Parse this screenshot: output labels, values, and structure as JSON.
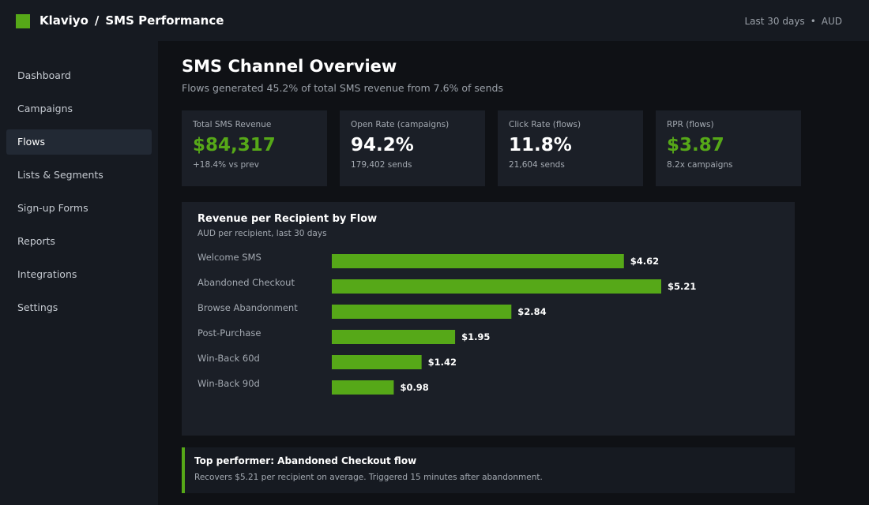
{
  "app": {
    "brand": "Klaviyo",
    "separator": "/",
    "section": "SMS Performance"
  },
  "top_meta": {
    "range": "Last 30 days",
    "dot": "•",
    "currency": "AUD"
  },
  "colors": {
    "accent": "#56a818",
    "bar": "#56a818"
  },
  "sidebar": {
    "items": [
      {
        "label": "Dashboard"
      },
      {
        "label": "Campaigns"
      },
      {
        "label": "Flows",
        "active": true
      },
      {
        "label": "Lists & Segments"
      },
      {
        "label": "Sign-up Forms"
      },
      {
        "label": "Reports"
      },
      {
        "label": "Integrations"
      },
      {
        "label": "Settings"
      }
    ]
  },
  "header": {
    "title": "SMS Channel Overview",
    "subtitle": "Flows generated 45.2% of total SMS revenue from 7.6% of sends"
  },
  "kpis": [
    {
      "label": "Total SMS Revenue",
      "value": "$84,317",
      "sub": "+18.4% vs prev",
      "accent": true
    },
    {
      "label": "Open Rate (campaigns)",
      "value": "94.2%",
      "sub": "179,402 sends",
      "accent": false
    },
    {
      "label": "Click Rate (flows)",
      "value": "11.8%",
      "sub": "21,604 sends",
      "accent": false
    },
    {
      "label": "RPR (flows)",
      "value": "$3.87",
      "sub": "8.2x campaigns",
      "accent": true
    }
  ],
  "chart_card": {
    "title": "Revenue per Recipient by Flow",
    "subtitle": "AUD per recipient, last 30 days"
  },
  "chart_data": {
    "type": "bar",
    "orientation": "horizontal",
    "title": "Revenue per Recipient by Flow",
    "subtitle": "AUD per recipient, last 30 days",
    "categories": [
      "Welcome SMS",
      "Abandoned Checkout",
      "Browse Abandonment",
      "Post-Purchase",
      "Win-Back 60d",
      "Win-Back 90d"
    ],
    "values": [
      4.62,
      5.21,
      2.84,
      1.95,
      1.42,
      0.98
    ],
    "value_labels": [
      "$4.62",
      "$5.21",
      "$2.84",
      "$1.95",
      "$1.42",
      "$0.98"
    ],
    "grid": false
  },
  "callout": {
    "title": "Top performer: Abandoned Checkout flow",
    "text": "Recovers $5.21 per recipient on average. Triggered 15 minutes after abandonment."
  }
}
